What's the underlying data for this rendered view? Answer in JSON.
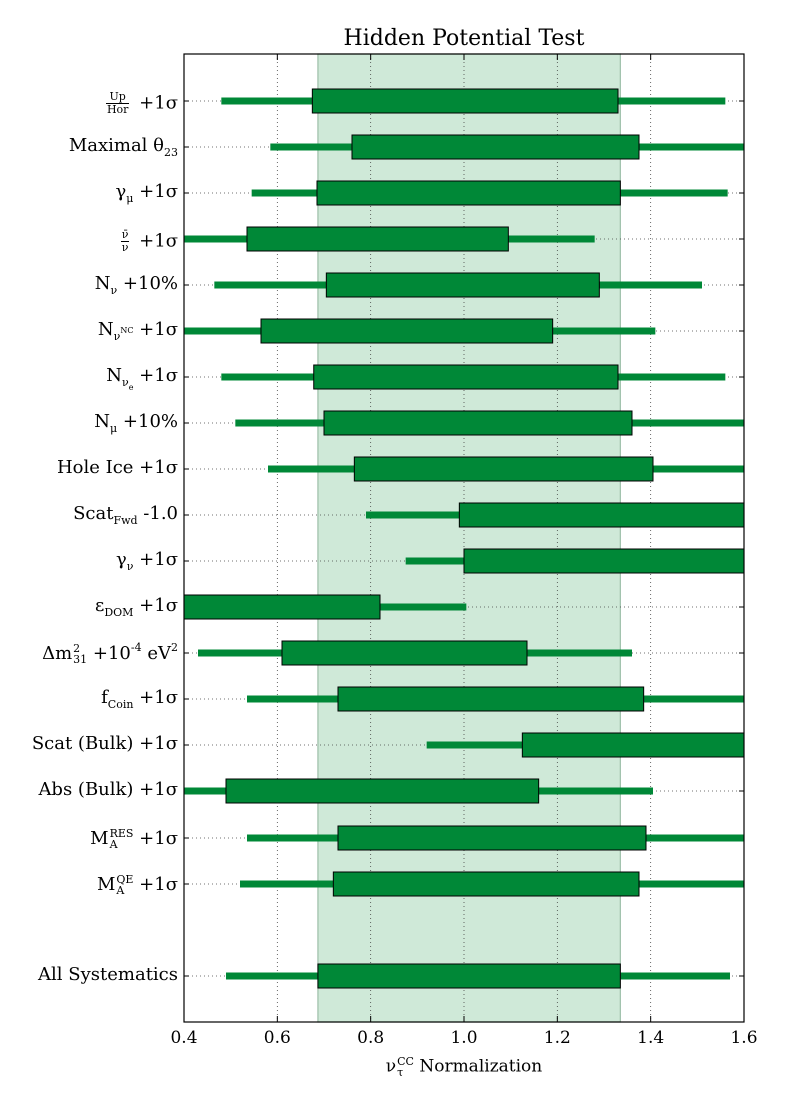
{
  "chart_data": {
    "type": "bar",
    "title": "Hidden Potential Test",
    "xlabel": {
      "base": "ν",
      "sup": "CC",
      "sub": "τ",
      "rest": "Normalization"
    },
    "xlim": [
      0.4,
      1.6
    ],
    "xticks": [
      "0.4",
      "0.6",
      "0.8",
      "1.0",
      "1.2",
      "1.4",
      "1.6"
    ],
    "xtick_values": [
      0.4,
      0.6,
      0.8,
      1.0,
      1.2,
      1.4,
      1.6
    ],
    "grid": true,
    "reference_band": [
      0.687,
      1.335
    ],
    "colors": {
      "bar": "#008837",
      "band": "#cfe9d8",
      "band_edge": "#9cbfa8"
    },
    "rows": [
      {
        "name": "up-hor",
        "label": {
          "num": "Up",
          "den": "Hor",
          "rest": "+1σ"
        },
        "box": [
          0.675,
          1.33
        ],
        "line": [
          0.48,
          1.56
        ]
      },
      {
        "name": "maximal-theta23",
        "label": {
          "base": "Maximal θ",
          "sub": "23"
        },
        "box": [
          0.76,
          1.375
        ],
        "line": [
          0.585,
          1.6
        ]
      },
      {
        "name": "gamma-mu",
        "label": {
          "base": "γ",
          "sub": "μ",
          "rest": "+1σ"
        },
        "box": [
          0.685,
          1.335
        ],
        "line": [
          0.545,
          1.565
        ]
      },
      {
        "name": "nubar-nu",
        "label": {
          "num": "ν̄",
          "den": "ν",
          "rest": "+1σ"
        },
        "box": [
          0.535,
          1.095
        ],
        "line": [
          0.4,
          1.28
        ]
      },
      {
        "name": "n-nu",
        "label": {
          "base": "N",
          "sub": "ν",
          "rest": "+10%"
        },
        "box": [
          0.705,
          1.29
        ],
        "line": [
          0.465,
          1.51
        ]
      },
      {
        "name": "n-nu-nc",
        "label": {
          "base": "N",
          "sub": "ν",
          "subsup": "NC",
          "rest": "+1σ"
        },
        "box": [
          0.565,
          1.19
        ],
        "line": [
          0.4,
          1.41
        ]
      },
      {
        "name": "n-nu-e",
        "label": {
          "base": "N",
          "sub": "ν",
          "subsub": "e",
          "rest": "+1σ"
        },
        "box": [
          0.678,
          1.33
        ],
        "line": [
          0.48,
          1.56
        ]
      },
      {
        "name": "n-mu",
        "label": {
          "base": "N",
          "sub": "μ",
          "rest": "+10%"
        },
        "box": [
          0.7,
          1.36
        ],
        "line": [
          0.51,
          1.6
        ]
      },
      {
        "name": "hole-ice",
        "label": {
          "base": "Hole Ice +1σ"
        },
        "box": [
          0.765,
          1.405
        ],
        "line": [
          0.58,
          1.6
        ]
      },
      {
        "name": "scat-fwd",
        "label": {
          "base": "Scat",
          "sub": "Fwd",
          "rest": "-1.0"
        },
        "box": [
          0.99,
          1.6
        ],
        "line": [
          0.79,
          1.6
        ]
      },
      {
        "name": "gamma-nu",
        "label": {
          "base": "γ",
          "sub": "ν",
          "rest": "+1σ"
        },
        "box": [
          1.0,
          1.6
        ],
        "line": [
          0.875,
          1.6
        ]
      },
      {
        "name": "eps-dom",
        "label": {
          "base": "ε",
          "sub": "DOM",
          "rest": "+1σ"
        },
        "box": [
          0.4,
          0.82
        ],
        "line": [
          0.4,
          1.005
        ]
      },
      {
        "name": "delta-m31",
        "label": {
          "base": "Δm",
          "sup": "2",
          "sub": "31",
          "rest": "+10",
          "restsup": "-4",
          "tail": "eV",
          "tailsup": "2"
        },
        "box": [
          0.61,
          1.135
        ],
        "line": [
          0.43,
          1.36
        ]
      },
      {
        "name": "f-coin",
        "label": {
          "base": "f",
          "sub": "Coin",
          "rest": "+1σ"
        },
        "box": [
          0.73,
          1.385
        ],
        "line": [
          0.535,
          1.6
        ]
      },
      {
        "name": "scat-bulk",
        "label": {
          "base": "Scat (Bulk) +1σ"
        },
        "box": [
          1.125,
          1.6
        ],
        "line": [
          0.92,
          1.6
        ]
      },
      {
        "name": "abs-bulk",
        "label": {
          "base": "Abs (Bulk) +1σ"
        },
        "box": [
          0.49,
          1.16
        ],
        "line": [
          0.4,
          1.405
        ]
      },
      {
        "name": "ma-res",
        "label": {
          "base": "M",
          "sup": "RES",
          "sub": "A",
          "rest": "+1σ"
        },
        "box": [
          0.73,
          1.39
        ],
        "line": [
          0.535,
          1.6
        ]
      },
      {
        "name": "ma-qe",
        "label": {
          "base": "M",
          "sup": "QE",
          "sub": "A",
          "rest": "+1σ"
        },
        "box": [
          0.72,
          1.375
        ],
        "line": [
          0.52,
          1.6
        ]
      },
      {
        "name": "all-systematics",
        "label": {
          "base": "All Systematics"
        },
        "box": [
          0.687,
          1.335
        ],
        "line": [
          0.49,
          1.57
        ]
      }
    ]
  }
}
